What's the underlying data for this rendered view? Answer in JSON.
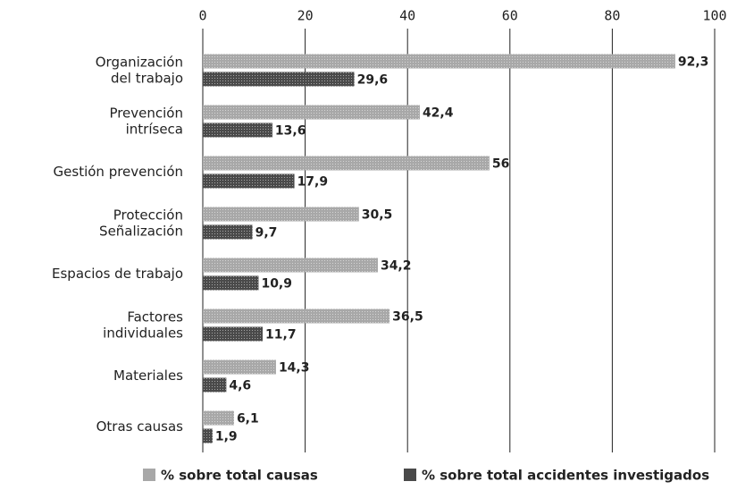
{
  "chart_data": {
    "type": "bar",
    "orientation": "horizontal",
    "categories": [
      "Organización\ndel trabajo",
      "Prevención\nintríseca",
      "Gestión prevención",
      "Protección\nSeñalización",
      "Espacios de trabajo",
      "Factores\nindividuales",
      "Materiales",
      "Otras causas"
    ],
    "series": [
      {
        "name": "% sobre total causas",
        "color": "#a8a8a8",
        "values": [
          92.3,
          42.4,
          56,
          30.5,
          34.2,
          36.5,
          14.3,
          6.1
        ],
        "value_labels": [
          "92,3",
          "42,4",
          "56",
          "30,5",
          "34,2",
          "36,5",
          "14,3",
          "6,1"
        ]
      },
      {
        "name": "% sobre total accidentes investigados",
        "color": "#4a4a4a",
        "values": [
          29.6,
          13.6,
          17.9,
          9.7,
          10.9,
          11.7,
          4.6,
          1.9
        ],
        "value_labels": [
          "29,6",
          "13,6",
          "17,9",
          "9,7",
          "10,9",
          "11,7",
          "4,6",
          "1,9"
        ]
      }
    ],
    "xlim": [
      0,
      100
    ],
    "xticks": [
      0,
      20,
      40,
      60,
      80,
      100
    ],
    "grid": true,
    "legend": "bottom"
  }
}
